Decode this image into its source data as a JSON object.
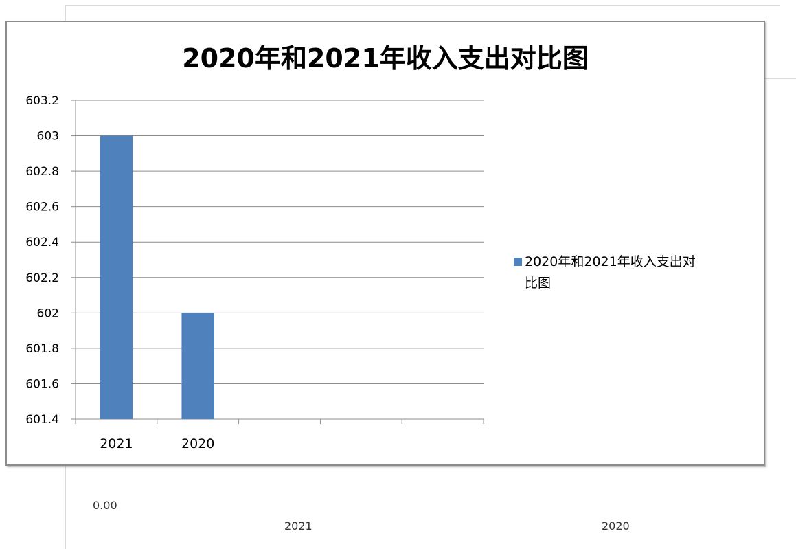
{
  "chart_data": {
    "type": "bar",
    "title": "2020年和2021年收入支出对比图",
    "categories": [
      "2021",
      "2020",
      "",
      "",
      ""
    ],
    "values": [
      603,
      602,
      null,
      null,
      null
    ],
    "yticks": [
      "603.2",
      "603",
      "602.8",
      "602.6",
      "602.4",
      "602.2",
      "602",
      "601.8",
      "601.6",
      "601.4"
    ],
    "ylim": [
      601.4,
      603.2
    ],
    "grid": true,
    "legend": {
      "position": "right",
      "label_line1": "2020年和2021年收入支出对",
      "label_line2": "比图"
    },
    "series_color": "#4f81bd"
  },
  "background_sheet": {
    "value_label": "0.00",
    "x_labels": [
      "2021",
      "2020"
    ]
  }
}
